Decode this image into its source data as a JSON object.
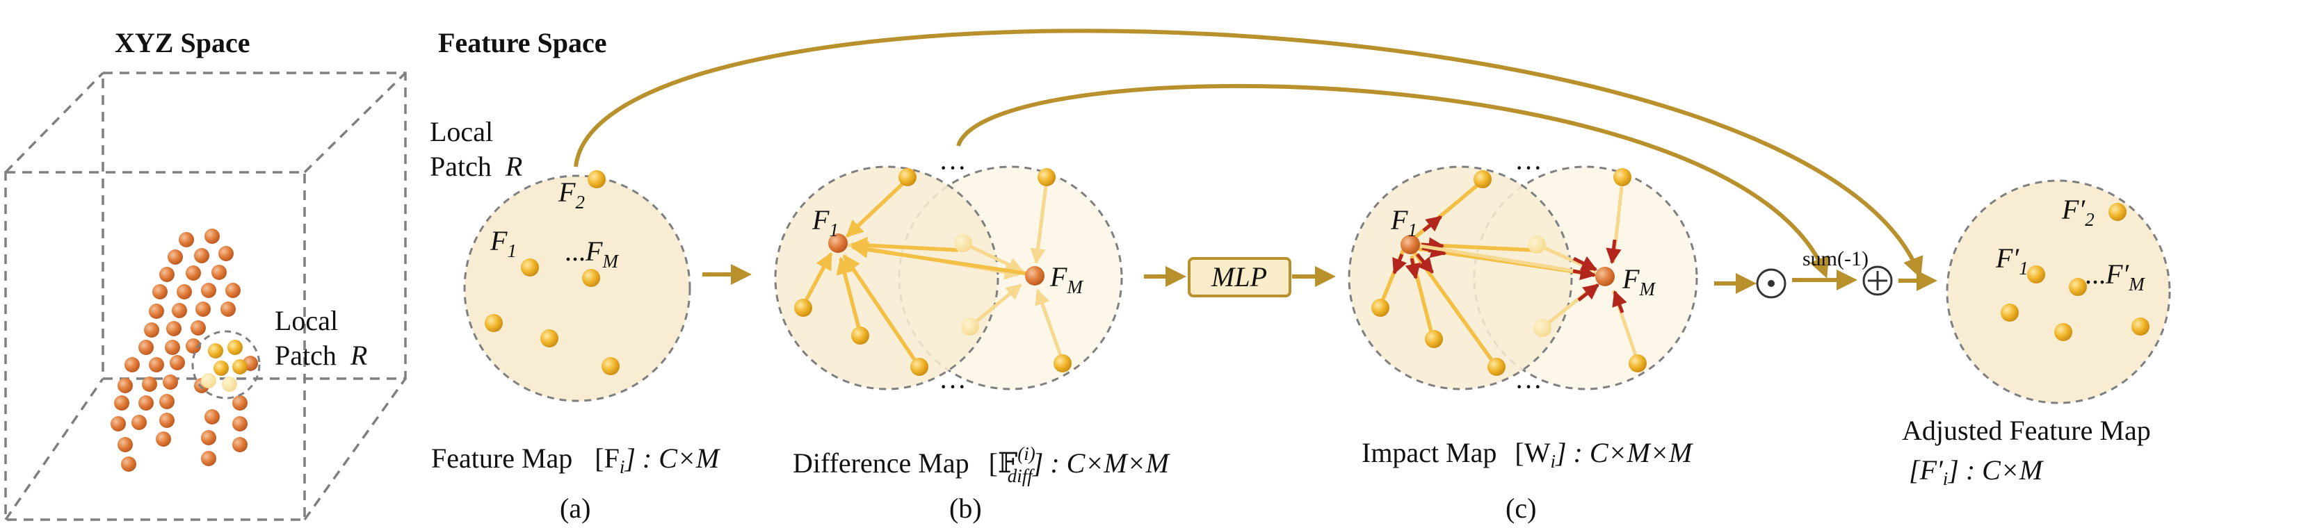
{
  "titles": {
    "xyz_space": "XYZ Space",
    "feature_space": "Feature Space"
  },
  "xyz_panel": {
    "patch_label_line1": "Local",
    "patch_label_line2": "Patch",
    "patch_label_symbol": "R"
  },
  "feature_map": {
    "patch_label_line1": "Local",
    "patch_label_line2": "Patch",
    "patch_label_symbol": "R",
    "node_labels": {
      "f1": "F",
      "f1_sub": "1",
      "f2": "F",
      "f2_sub": "2",
      "fm_prefix": "...",
      "fm": "F",
      "fm_sub": "M"
    },
    "caption_text": "Feature Map",
    "caption_math": "[F",
    "caption_math_sub": "i",
    "caption_math_close": "] : C×M",
    "panel_letter": "(a)"
  },
  "difference_map": {
    "node_labels": {
      "f1": "F",
      "f1_sub": "1",
      "fm": "F",
      "fm_sub": "M"
    },
    "ellipsis": "···",
    "caption_text": "Difference Map",
    "caption_math_open": "[𝔽",
    "caption_math_sup": "(i)",
    "caption_math_sub": "diff",
    "caption_math_close": "] : C×M×M",
    "panel_letter": "(b)"
  },
  "mlp": {
    "label": "MLP"
  },
  "impact_map": {
    "node_labels": {
      "f1": "F",
      "f1_sub": "1",
      "fm": "F",
      "fm_sub": "M"
    },
    "ellipsis": "···",
    "caption_text": "Impact Map",
    "caption_math": "[W",
    "caption_math_sub": "i",
    "caption_math_close": "] : C×M×M",
    "panel_letter": "(c)"
  },
  "operators": {
    "hadamard": "⊙",
    "sum_label": "sum(-1)",
    "plus": "⊕"
  },
  "adjusted_map": {
    "node_labels": {
      "f1": "F′",
      "f1_sub": "1",
      "f2": "F′",
      "f2_sub": "2",
      "fm_prefix": "...",
      "fm": "F′",
      "fm_sub": "M"
    },
    "caption_line1": "Adjusted Feature Map",
    "caption_math": "[F′",
    "caption_math_sub": "i",
    "caption_math_close": "] : C×M"
  },
  "colors": {
    "gold_arrow": "#b8902c",
    "circle_fill": "#f8ecd2",
    "node_yellow": "#f0b429",
    "node_orange": "#e07b39",
    "edge_yellow": "#f3bf45",
    "edge_red": "#b3261e",
    "mlp_fill": "#f9ecc8",
    "dash_gray": "#7f7f7f"
  }
}
